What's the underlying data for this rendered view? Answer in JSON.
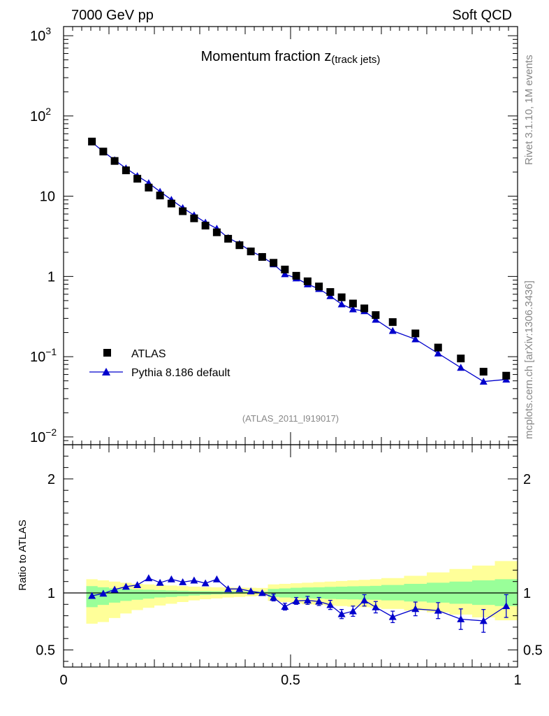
{
  "header": {
    "left": "7000 GeV pp",
    "right": "Soft QCD"
  },
  "side_labels": {
    "rivet": "Rivet 3.1.10,  1M events",
    "mcplots": "mcplots.cern.ch [arXiv:1306.3436]"
  },
  "colors": {
    "data": "#000000",
    "mc": "#0000cc",
    "band_inner": "#99ff99",
    "band_outer": "#ffff99"
  },
  "chart_data": [
    {
      "type": "scatter",
      "panel": "main",
      "title": "Momentum fraction z",
      "title_subscript": "(track jets)",
      "analysis_label": "(ATLAS_2011_I919017)",
      "yscale": "log",
      "ylim": [
        0.008,
        1300
      ],
      "xlim": [
        0,
        1
      ],
      "y_ticks": [
        {
          "value": 1000,
          "label": "10",
          "sup": "3"
        },
        {
          "value": 100,
          "label": "10",
          "sup": "2"
        },
        {
          "value": 10,
          "label": "10",
          "sup": ""
        },
        {
          "value": 1,
          "label": "1",
          "sup": ""
        },
        {
          "value": 0.1,
          "label": "10",
          "sup": "−1"
        },
        {
          "value": 0.01,
          "label": "10",
          "sup": "−2"
        }
      ],
      "legend_position": "middle-left",
      "series": [
        {
          "name": "ATLAS",
          "marker": "square",
          "x": [
            0.0625,
            0.0875,
            0.1125,
            0.1375,
            0.1625,
            0.1875,
            0.2125,
            0.2375,
            0.2625,
            0.2875,
            0.3125,
            0.3375,
            0.3625,
            0.3875,
            0.4125,
            0.4375,
            0.4625,
            0.4875,
            0.5125,
            0.5375,
            0.5625,
            0.5875,
            0.6125,
            0.6375,
            0.6625,
            0.6875,
            0.725,
            0.775,
            0.825,
            0.875,
            0.925,
            0.975
          ],
          "y": [
            48,
            36,
            27.5,
            21,
            16.5,
            12.8,
            10.2,
            8.1,
            6.5,
            5.3,
            4.3,
            3.55,
            2.95,
            2.45,
            2.05,
            1.75,
            1.48,
            1.22,
            1.02,
            0.87,
            0.75,
            0.64,
            0.55,
            0.46,
            0.4,
            0.33,
            0.27,
            0.195,
            0.13,
            0.095,
            0.065,
            0.058
          ]
        },
        {
          "name": "Pythia 8.186 default",
          "marker": "triangle",
          "x": [
            0.0625,
            0.0875,
            0.1125,
            0.1375,
            0.1625,
            0.1875,
            0.2125,
            0.2375,
            0.2625,
            0.2875,
            0.3125,
            0.3375,
            0.3625,
            0.3875,
            0.4125,
            0.4375,
            0.4625,
            0.4875,
            0.5125,
            0.5375,
            0.5625,
            0.5875,
            0.6125,
            0.6375,
            0.6625,
            0.6875,
            0.725,
            0.775,
            0.825,
            0.875,
            0.925,
            0.975
          ],
          "y": [
            47,
            36,
            28.2,
            22.3,
            17.9,
            14.6,
            11.4,
            9.05,
            7.15,
            5.8,
            4.7,
            3.95,
            3.03,
            2.55,
            2.07,
            1.76,
            1.42,
            1.07,
            0.95,
            0.8,
            0.7,
            0.57,
            0.45,
            0.39,
            0.37,
            0.29,
            0.21,
            0.165,
            0.11,
            0.073,
            0.049,
            0.052
          ]
        }
      ]
    },
    {
      "type": "scatter",
      "panel": "ratio",
      "ylabel": "Ratio to ATLAS",
      "ylim": [
        0.35,
        2.3
      ],
      "xlim": [
        0,
        1
      ],
      "y_ticks": [
        {
          "value": 2,
          "label": "2"
        },
        {
          "value": 1,
          "label": "1"
        },
        {
          "value": 0.5,
          "label": "0.5"
        }
      ],
      "x_ticks": [
        {
          "value": 0,
          "label": "0"
        },
        {
          "value": 0.5,
          "label": "0.5"
        },
        {
          "value": 1,
          "label": "1"
        }
      ],
      "band_edges": [
        0.05,
        0.075,
        0.1,
        0.125,
        0.15,
        0.175,
        0.2,
        0.225,
        0.25,
        0.275,
        0.3,
        0.325,
        0.35,
        0.375,
        0.4,
        0.425,
        0.45,
        0.475,
        0.5,
        0.525,
        0.55,
        0.575,
        0.6,
        0.625,
        0.65,
        0.675,
        0.7,
        0.75,
        0.8,
        0.85,
        0.9,
        0.95,
        1.0
      ],
      "band_inner": {
        "lo": [
          0.875,
          0.895,
          0.915,
          0.93,
          0.94,
          0.95,
          0.96,
          0.965,
          0.972,
          0.978,
          0.983,
          0.987,
          0.99,
          0.993,
          0.995,
          0.996,
          0.965,
          0.96,
          0.955,
          0.952,
          0.95,
          0.947,
          0.945,
          0.943,
          0.942,
          0.94,
          0.935,
          0.925,
          0.915,
          0.905,
          0.895,
          0.885
        ],
        "hi": [
          1.06,
          1.05,
          1.04,
          1.035,
          1.03,
          1.028,
          1.025,
          1.022,
          1.02,
          1.018,
          1.017,
          1.016,
          1.015,
          1.014,
          1.013,
          1.012,
          1.035,
          1.04,
          1.045,
          1.048,
          1.05,
          1.053,
          1.055,
          1.058,
          1.06,
          1.062,
          1.07,
          1.08,
          1.09,
          1.1,
          1.11,
          1.12
        ]
      },
      "band_outer": {
        "lo": [
          0.73,
          0.745,
          0.78,
          0.82,
          0.85,
          0.87,
          0.89,
          0.905,
          0.92,
          0.935,
          0.945,
          0.952,
          0.96,
          0.965,
          0.97,
          0.975,
          0.93,
          0.92,
          0.91,
          0.9,
          0.895,
          0.89,
          0.885,
          0.88,
          0.875,
          0.87,
          0.86,
          0.845,
          0.83,
          0.81,
          0.785,
          0.76
        ],
        "hi": [
          1.12,
          1.11,
          1.1,
          1.09,
          1.08,
          1.075,
          1.07,
          1.065,
          1.06,
          1.055,
          1.052,
          1.05,
          1.048,
          1.046,
          1.045,
          1.044,
          1.075,
          1.08,
          1.085,
          1.09,
          1.095,
          1.1,
          1.105,
          1.11,
          1.115,
          1.12,
          1.13,
          1.15,
          1.18,
          1.21,
          1.24,
          1.28
        ]
      },
      "series": [
        {
          "name": "Pythia 8.186 default / ATLAS",
          "marker": "triangle",
          "x": [
            0.0625,
            0.0875,
            0.1125,
            0.1375,
            0.1625,
            0.1875,
            0.2125,
            0.2375,
            0.2625,
            0.2875,
            0.3125,
            0.3375,
            0.3625,
            0.3875,
            0.4125,
            0.4375,
            0.4625,
            0.4875,
            0.5125,
            0.5375,
            0.5625,
            0.5875,
            0.6125,
            0.6375,
            0.6625,
            0.6875,
            0.725,
            0.775,
            0.825,
            0.875,
            0.925,
            0.975
          ],
          "y": [
            0.975,
            0.995,
            1.03,
            1.055,
            1.07,
            1.13,
            1.09,
            1.12,
            1.095,
            1.11,
            1.085,
            1.12,
            1.035,
            1.035,
            1.015,
            1.0,
            0.96,
            0.88,
            0.93,
            0.935,
            0.925,
            0.895,
            0.815,
            0.84,
            0.935,
            0.875,
            0.79,
            0.86,
            0.845,
            0.77,
            0.755,
            0.885
          ],
          "err": [
            0.01,
            0.01,
            0.01,
            0.01,
            0.01,
            0.01,
            0.01,
            0.01,
            0.01,
            0.01,
            0.01,
            0.01,
            0.02,
            0.02,
            0.02,
            0.02,
            0.03,
            0.03,
            0.03,
            0.035,
            0.035,
            0.04,
            0.04,
            0.045,
            0.05,
            0.05,
            0.05,
            0.06,
            0.07,
            0.09,
            0.1,
            0.1
          ]
        }
      ]
    }
  ]
}
